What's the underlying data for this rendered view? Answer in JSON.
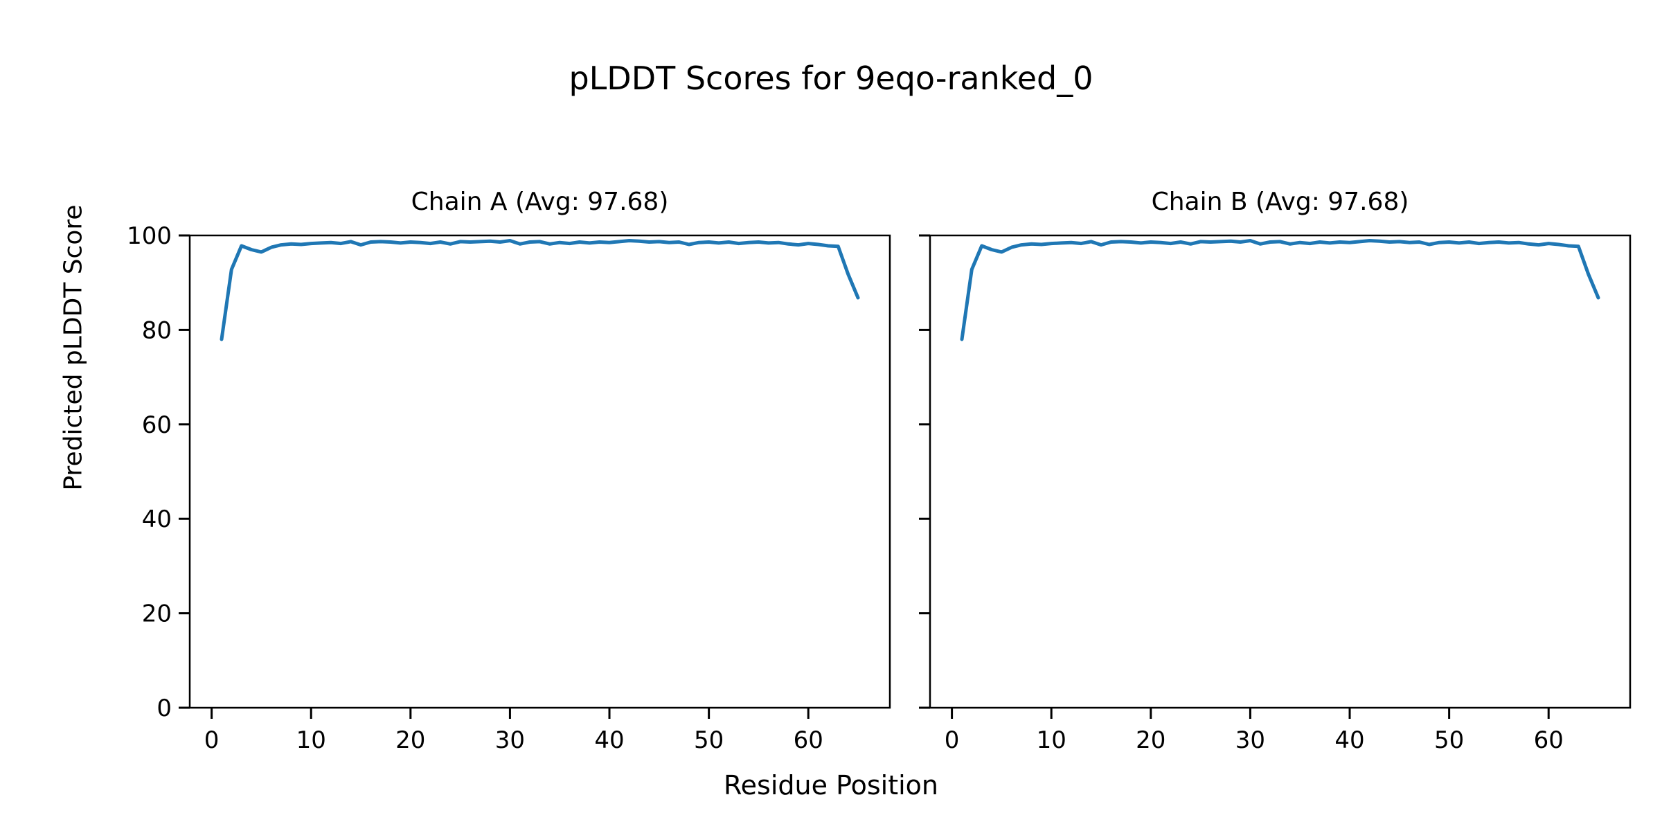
{
  "figure": {
    "title": "pLDDT Scores for 9eqo-ranked_0",
    "xlabel": "Residue Position",
    "ylabel": "Predicted pLDDT Score",
    "background_color": "#ffffff",
    "text_color": "#000000",
    "spine_color": "#000000"
  },
  "chart_data": [
    {
      "type": "line",
      "title": "Chain A (Avg: 97.68)",
      "chain": "A",
      "avg": 97.68,
      "line_color": "#1f77b4",
      "xlim": [
        -2.2,
        68.2
      ],
      "ylim": [
        0,
        100
      ],
      "xticks": [
        0,
        10,
        20,
        30,
        40,
        50,
        60
      ],
      "yticks": [
        0,
        20,
        40,
        60,
        80,
        100
      ],
      "show_ytick_labels": true,
      "grid": false,
      "legend": "none",
      "x": [
        1,
        2,
        3,
        4,
        5,
        6,
        7,
        8,
        9,
        10,
        11,
        12,
        13,
        14,
        15,
        16,
        17,
        18,
        19,
        20,
        21,
        22,
        23,
        24,
        25,
        26,
        27,
        28,
        29,
        30,
        31,
        32,
        33,
        34,
        35,
        36,
        37,
        38,
        39,
        40,
        41,
        42,
        43,
        44,
        45,
        46,
        47,
        48,
        49,
        50,
        51,
        52,
        53,
        54,
        55,
        56,
        57,
        58,
        59,
        60,
        61,
        62,
        63,
        64,
        65
      ],
      "y": [
        78.0,
        92.8,
        97.8,
        97.0,
        96.5,
        97.5,
        98.0,
        98.2,
        98.1,
        98.3,
        98.4,
        98.5,
        98.3,
        98.7,
        98.0,
        98.6,
        98.7,
        98.6,
        98.4,
        98.6,
        98.5,
        98.3,
        98.6,
        98.2,
        98.7,
        98.6,
        98.7,
        98.8,
        98.6,
        98.9,
        98.2,
        98.6,
        98.7,
        98.2,
        98.5,
        98.3,
        98.6,
        98.4,
        98.6,
        98.5,
        98.7,
        98.9,
        98.8,
        98.6,
        98.7,
        98.5,
        98.6,
        98.1,
        98.5,
        98.6,
        98.4,
        98.6,
        98.3,
        98.5,
        98.6,
        98.4,
        98.5,
        98.2,
        98.0,
        98.3,
        98.1,
        97.8,
        97.7,
        91.8,
        86.8
      ]
    },
    {
      "type": "line",
      "title": "Chain B (Avg: 97.68)",
      "chain": "B",
      "avg": 97.68,
      "line_color": "#1f77b4",
      "xlim": [
        -2.2,
        68.2
      ],
      "ylim": [
        0,
        100
      ],
      "xticks": [
        0,
        10,
        20,
        30,
        40,
        50,
        60
      ],
      "yticks": [
        0,
        20,
        40,
        60,
        80,
        100
      ],
      "show_ytick_labels": false,
      "grid": false,
      "legend": "none",
      "x": [
        1,
        2,
        3,
        4,
        5,
        6,
        7,
        8,
        9,
        10,
        11,
        12,
        13,
        14,
        15,
        16,
        17,
        18,
        19,
        20,
        21,
        22,
        23,
        24,
        25,
        26,
        27,
        28,
        29,
        30,
        31,
        32,
        33,
        34,
        35,
        36,
        37,
        38,
        39,
        40,
        41,
        42,
        43,
        44,
        45,
        46,
        47,
        48,
        49,
        50,
        51,
        52,
        53,
        54,
        55,
        56,
        57,
        58,
        59,
        60,
        61,
        62,
        63,
        64,
        65
      ],
      "y": [
        78.0,
        92.8,
        97.8,
        97.0,
        96.5,
        97.5,
        98.0,
        98.2,
        98.1,
        98.3,
        98.4,
        98.5,
        98.3,
        98.7,
        98.0,
        98.6,
        98.7,
        98.6,
        98.4,
        98.6,
        98.5,
        98.3,
        98.6,
        98.2,
        98.7,
        98.6,
        98.7,
        98.8,
        98.6,
        98.9,
        98.2,
        98.6,
        98.7,
        98.2,
        98.5,
        98.3,
        98.6,
        98.4,
        98.6,
        98.5,
        98.7,
        98.9,
        98.8,
        98.6,
        98.7,
        98.5,
        98.6,
        98.1,
        98.5,
        98.6,
        98.4,
        98.6,
        98.3,
        98.5,
        98.6,
        98.4,
        98.5,
        98.2,
        98.0,
        98.3,
        98.1,
        97.8,
        97.7,
        91.8,
        86.8
      ]
    }
  ]
}
